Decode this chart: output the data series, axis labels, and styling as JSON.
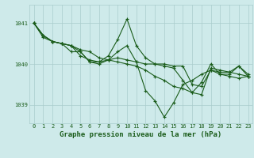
{
  "background_color": "#ceeaea",
  "grid_color": "#aacccc",
  "line_color": "#1a5c1a",
  "marker_color": "#1a5c1a",
  "xlabel": "Graphe pression niveau de la mer (hPa)",
  "xlabel_fontsize": 6.5,
  "yticks": [
    1039,
    1040,
    1041
  ],
  "xticks": [
    0,
    1,
    2,
    3,
    4,
    5,
    6,
    7,
    8,
    9,
    10,
    11,
    12,
    13,
    14,
    15,
    16,
    17,
    18,
    19,
    20,
    21,
    22,
    23
  ],
  "ylim": [
    1038.55,
    1041.45
  ],
  "xlim": [
    -0.5,
    23.5
  ],
  "series": [
    [
      1041.0,
      1040.7,
      1040.55,
      1040.5,
      1040.45,
      1040.35,
      1040.3,
      1040.15,
      1040.1,
      1040.05,
      1040.0,
      1039.95,
      1039.85,
      1039.7,
      1039.6,
      1039.45,
      1039.4,
      1039.3,
      1039.25,
      1039.9,
      1039.85,
      1039.8,
      1039.75,
      1039.7
    ],
    [
      1041.0,
      1040.65,
      1040.55,
      1040.5,
      1040.45,
      1040.2,
      1040.1,
      1040.05,
      1040.1,
      1040.15,
      1040.1,
      1040.05,
      1039.35,
      1039.1,
      1038.7,
      1039.05,
      1039.5,
      1039.6,
      1039.75,
      1039.85,
      1039.75,
      1039.7,
      1039.65,
      1039.7
    ],
    [
      1041.0,
      1040.7,
      1040.55,
      1040.5,
      1040.45,
      1040.3,
      1040.05,
      1040.05,
      1040.2,
      1040.6,
      1041.1,
      1040.45,
      1040.15,
      1040.0,
      1040.0,
      1039.95,
      1039.95,
      1039.5,
      1039.45,
      1039.85,
      1039.8,
      1039.8,
      1039.95,
      1039.75
    ],
    [
      1041.0,
      1040.7,
      1040.55,
      1040.5,
      1040.3,
      1040.3,
      1040.05,
      1040.0,
      1040.1,
      1040.3,
      1040.45,
      1040.05,
      1040.0,
      1040.0,
      1039.95,
      1039.9,
      1039.6,
      1039.3,
      1039.55,
      1040.0,
      1039.75,
      1039.75,
      1039.95,
      1039.7
    ]
  ],
  "tick_fontsize": 5.0,
  "marker_size": 3.0,
  "line_width": 0.8
}
